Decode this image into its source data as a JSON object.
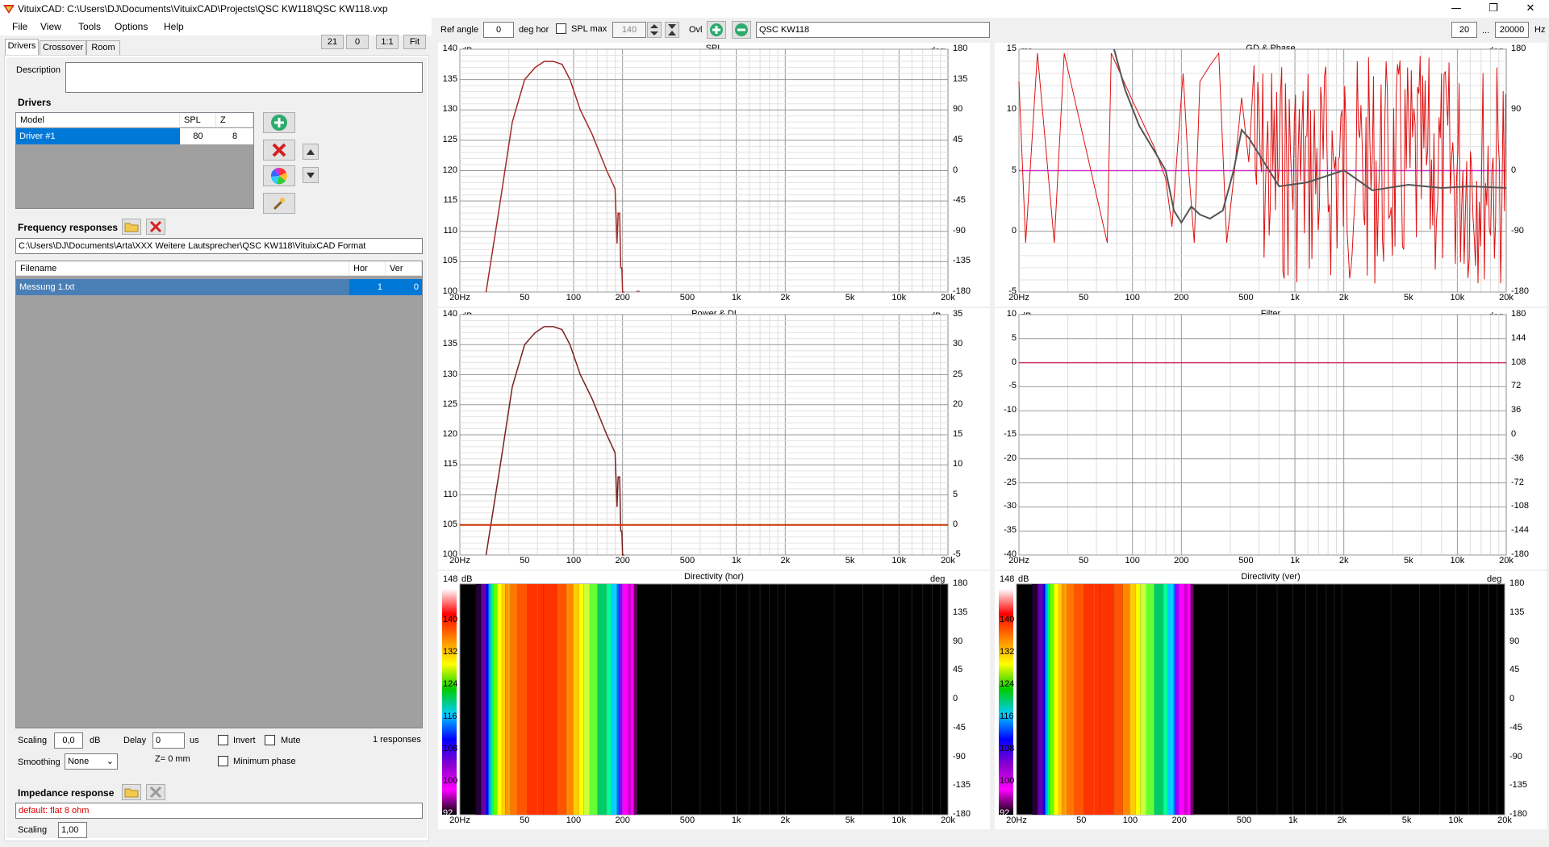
{
  "window": {
    "title": "VituixCAD: C:\\Users\\DJ\\Documents\\VituixCAD\\Projects\\QSC KW118\\QSC KW118.vxp",
    "min": "—",
    "max": "❐",
    "close": "✕"
  },
  "menu": [
    "File",
    "View",
    "Tools",
    "Options",
    "Help"
  ],
  "tabs": [
    "Drivers",
    "Crossover",
    "Room"
  ],
  "zoom_buttons": [
    "21",
    "0",
    "1:1",
    "Fit"
  ],
  "description_label": "Description",
  "description_value": "",
  "drivers": {
    "section": "Drivers",
    "headers": [
      "Model",
      "SPL",
      "Z"
    ],
    "rows": [
      {
        "model": "Driver #1",
        "spl": "80",
        "z": "8"
      }
    ]
  },
  "freq": {
    "section": "Frequency responses",
    "path": "C:\\Users\\DJ\\Documents\\Arta\\XXX Weitere Lautsprecher\\QSC KW118\\VituixCAD Format",
    "headers": [
      "Filename",
      "Hor",
      "Ver"
    ],
    "rows": [
      {
        "file": "Messung 1.txt",
        "hor": "1",
        "ver": "0"
      }
    ]
  },
  "controls": {
    "scaling_label": "Scaling",
    "scaling_value": "0,0",
    "db": "dB",
    "delay_label": "Delay",
    "delay_value": "0",
    "us": "us",
    "invert": "Invert",
    "mute": "Mute",
    "responses": "1 responses",
    "smoothing_label": "Smoothing",
    "smoothing_value": "None",
    "z_text": "Z= 0 mm",
    "min_phase": "Minimum phase"
  },
  "impedance": {
    "section": "Impedance response",
    "value": "default: flat 8 ohm",
    "scaling_label": "Scaling",
    "scaling_value": "1,00"
  },
  "toolbar": {
    "ref_angle_label": "Ref angle",
    "ref_angle_value": "0",
    "deg_hor": "deg hor",
    "spl_max_label": "SPL max",
    "spl_max_value": "140",
    "ovl": "Ovl",
    "overlay_name": "QSC KW118",
    "fmin": "20",
    "dots": "...",
    "fmax": "20000",
    "hz": "Hz"
  },
  "colors": {
    "spl": "#a52a2a",
    "phase_red": "#dd1111",
    "gd": "#555555",
    "magenta": "#cc33cc",
    "di": "#cc3300",
    "filter": "#cc3366",
    "accent": "#0078d7"
  },
  "x_ticks": [
    "20Hz",
    "50",
    "100",
    "200",
    "500",
    "1k",
    "2k",
    "5k",
    "10k",
    "20k"
  ],
  "chart_data": [
    {
      "type": "line",
      "title": "SPL",
      "unit_left": "dB",
      "unit_right": "deg",
      "yticks": [
        "140",
        "135",
        "130",
        "125",
        "120",
        "115",
        "110",
        "105",
        "100"
      ],
      "y2ticks": [
        "180",
        "135",
        "90",
        "45",
        "0",
        "-45",
        "-90",
        "-135",
        "-180"
      ],
      "ylim": [
        100,
        140
      ],
      "series": [
        {
          "x": [
            29,
            35,
            42,
            50,
            58,
            66,
            75,
            85,
            95,
            110,
            130,
            160,
            180,
            185,
            188,
            192,
            195,
            198,
            200,
            205
          ],
          "values": [
            100,
            114,
            128,
            135,
            137,
            138,
            138,
            137.5,
            135,
            130,
            126,
            120,
            117,
            108,
            113,
            113,
            104,
            104,
            100,
            100
          ]
        }
      ]
    },
    {
      "type": "line",
      "title": "GD & Phase",
      "unit_left": "ms",
      "unit_right": "deg",
      "yticks": [
        "15",
        "10",
        "5",
        "0",
        "-5"
      ],
      "y2ticks": [
        "180",
        "90",
        "0",
        "-90",
        "-180"
      ],
      "ylim": [
        -5,
        15
      ]
    },
    {
      "type": "line",
      "title": "Power & DI",
      "unit_left": "dB",
      "unit_right": "dB",
      "yticks": [
        "140",
        "135",
        "130",
        "125",
        "120",
        "115",
        "110",
        "105",
        "100"
      ],
      "y2ticks": [
        "35",
        "30",
        "25",
        "20",
        "15",
        "10",
        "5",
        "0",
        "-5"
      ],
      "ylim": [
        100,
        140
      ]
    },
    {
      "type": "line",
      "title": "Filter",
      "unit_left": "dB",
      "unit_right": "deg",
      "yticks": [
        "10",
        "5",
        "0",
        "-5",
        "-10",
        "-15",
        "-20",
        "-25",
        "-30",
        "-35",
        "-40"
      ],
      "y2ticks": [
        "180",
        "144",
        "108",
        "72",
        "36",
        "0",
        "-36",
        "-72",
        "-108",
        "-144",
        "-180"
      ],
      "ylim": [
        -40,
        10
      ]
    },
    {
      "type": "heatmap",
      "title": "Directivity (hor)",
      "unit_left": "dB",
      "unit_right": "deg",
      "scale": [
        "148",
        "140",
        "132",
        "124",
        "116",
        "108",
        "100",
        "92"
      ],
      "y2ticks": [
        "180",
        "135",
        "90",
        "45",
        "0",
        "-45",
        "-90",
        "-135",
        "-180"
      ]
    },
    {
      "type": "heatmap",
      "title": "Directivity (ver)",
      "unit_left": "dB",
      "unit_right": "deg",
      "scale": [
        "148",
        "140",
        "132",
        "124",
        "116",
        "108",
        "100",
        "92"
      ],
      "y2ticks": [
        "180",
        "135",
        "90",
        "45",
        "0",
        "-45",
        "-90",
        "-135",
        "-180"
      ]
    }
  ]
}
